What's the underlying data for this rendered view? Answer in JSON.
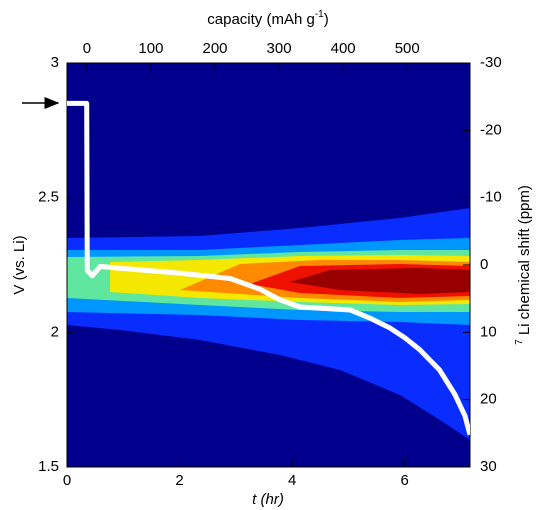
{
  "chart_data": {
    "type": "line",
    "xlabel": "t (hr)",
    "ylabel": "V (vs. Li)",
    "x2label_parts": [
      "capacity (mAh g",
      "-1",
      ")"
    ],
    "y2label_parts": [
      "7",
      " Li chemical shift (ppm)"
    ],
    "xlim": [
      0,
      7.16
    ],
    "xticks": [
      0,
      2,
      4,
      6
    ],
    "ylim": [
      1.5,
      3
    ],
    "yticks": [
      1.5,
      2,
      2.5,
      3
    ],
    "x2lim": [
      -31,
      598
    ],
    "x2ticks": [
      0,
      100,
      200,
      300,
      400,
      500
    ],
    "y2lim": [
      30,
      -30
    ],
    "y2ticks": [
      -30,
      -20,
      -10,
      0,
      10,
      20,
      30
    ],
    "series": [
      {
        "color": "#ffffff",
        "x": [
          0,
          0.35,
          0.36,
          0.45,
          0.59,
          0.94,
          2.0,
          2.9,
          3.43,
          3.79,
          4.14,
          5.03,
          5.38,
          5.74,
          6.0,
          6.27,
          6.62,
          6.89,
          7.07,
          7.16
        ],
        "values": [
          2.85,
          2.85,
          2.23,
          2.21,
          2.245,
          2.238,
          2.22,
          2.2,
          2.16,
          2.12,
          2.094,
          2.083,
          2.053,
          2.016,
          1.98,
          1.935,
          1.86,
          1.77,
          1.69,
          1.62
        ]
      }
    ]
  }
}
